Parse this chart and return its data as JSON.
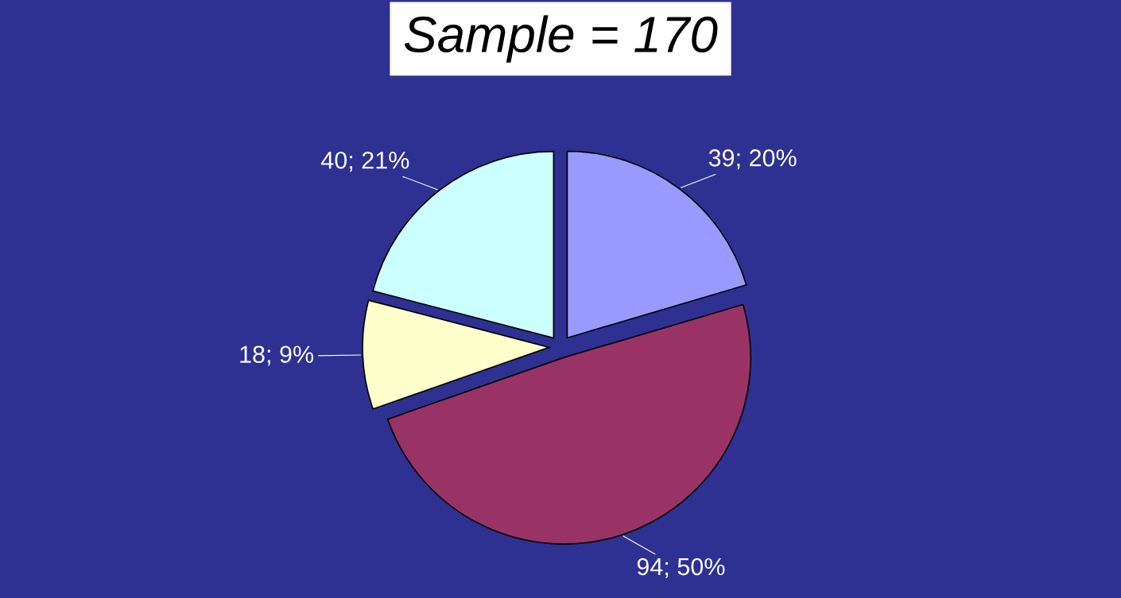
{
  "chart_data": {
    "type": "pie",
    "title": "Sample = 170",
    "categories": [
      null,
      null,
      null,
      null
    ],
    "values": [
      39,
      94,
      18,
      40
    ],
    "value_labels": [
      "39; 20%",
      "94; 50%",
      "18; 9%",
      "40; 21%"
    ],
    "colors": [
      "#9999ff",
      "#993366",
      "#ffffcc",
      "#ccffff"
    ],
    "legend": false
  }
}
